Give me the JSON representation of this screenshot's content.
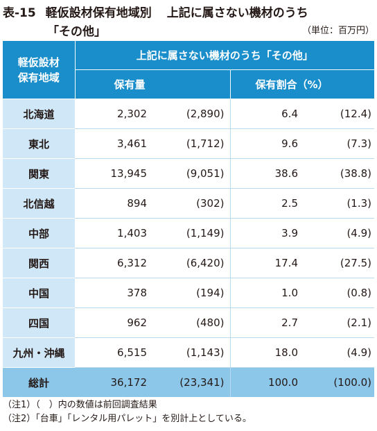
{
  "title": {
    "number": "表-15",
    "main": "軽仮設材保有地域別",
    "sub": "上記に属さない機材のうち",
    "line2": "「その他」",
    "unit": "（単位：百万円）"
  },
  "header": {
    "corner_line1": "軽仮設材",
    "corner_line2": "保有地域",
    "group": "上記に属さない機材のうち「その他」",
    "col_amount": "保有量",
    "col_ratio": "保有割合（%）"
  },
  "rows": [
    {
      "region": "北海道",
      "amount": "2,302",
      "amount_prev": "(2,890)",
      "ratio": "6.4",
      "ratio_prev": "(12.4)"
    },
    {
      "region": "東北",
      "amount": "3,461",
      "amount_prev": "(1,712)",
      "ratio": "9.6",
      "ratio_prev": "(7.3)"
    },
    {
      "region": "関東",
      "amount": "13,945",
      "amount_prev": "(9,051)",
      "ratio": "38.6",
      "ratio_prev": "(38.8)"
    },
    {
      "region": "北信越",
      "amount": "894",
      "amount_prev": "(302)",
      "ratio": "2.5",
      "ratio_prev": "(1.3)"
    },
    {
      "region": "中部",
      "amount": "1,403",
      "amount_prev": "(1,149)",
      "ratio": "3.9",
      "ratio_prev": "(4.9)"
    },
    {
      "region": "関西",
      "amount": "6,312",
      "amount_prev": "(6,420)",
      "ratio": "17.4",
      "ratio_prev": "(27.5)"
    },
    {
      "region": "中国",
      "amount": "378",
      "amount_prev": "(194)",
      "ratio": "1.0",
      "ratio_prev": "(0.8)"
    },
    {
      "region": "四国",
      "amount": "962",
      "amount_prev": "(480)",
      "ratio": "2.7",
      "ratio_prev": "(2.1)"
    },
    {
      "region": "九州・沖縄",
      "amount": "6,515",
      "amount_prev": "(1,143)",
      "ratio": "18.0",
      "ratio_prev": "(4.9)"
    },
    {
      "region": "総計",
      "amount": "36,172",
      "amount_prev": "(23,341)",
      "ratio": "100.0",
      "ratio_prev": "(100.0)"
    }
  ],
  "notes": [
    "（注1）（　）内の数値は前回調査結果",
    "（注2）「台車」「レンタル用パレット」を別計上としている。"
  ],
  "colors": {
    "header_bg": "#1a8ecb",
    "region_bg": "#cfe7f6",
    "total_bg": "#8cc6e9"
  }
}
